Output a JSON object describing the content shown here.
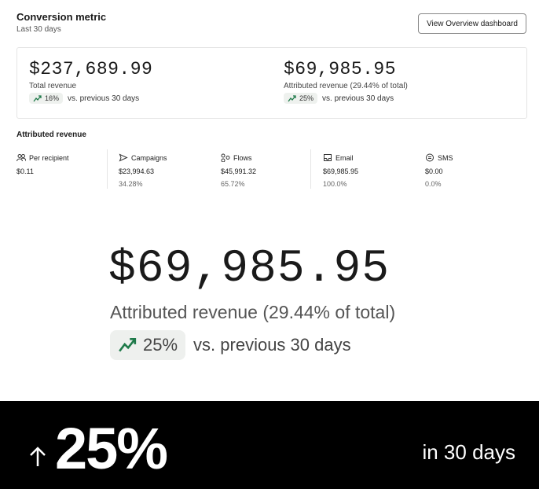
{
  "header": {
    "title": "Conversion metric",
    "subtitle": "Last 30 days",
    "button": "View Overview dashboard"
  },
  "summary": [
    {
      "value": "$237,689.99",
      "label": "Total revenue",
      "change": "16%",
      "comparison": "vs. previous 30 days"
    },
    {
      "value": "$69,985.95",
      "label": "Attributed revenue (29.44% of total)",
      "change": "25%",
      "comparison": "vs. previous 30 days"
    }
  ],
  "attributed": {
    "title": "Attributed revenue",
    "items": [
      {
        "label": "Per recipient",
        "value": "$0.11"
      },
      {
        "label": "Campaigns",
        "value": "$23,994.63",
        "share": "34.28%"
      },
      {
        "label": "Flows",
        "value": "$45,991.32",
        "share": "65.72%"
      },
      {
        "label": "Email",
        "value": "$69,985.95",
        "share": "100.0%"
      },
      {
        "label": "SMS",
        "value": "$0.00",
        "share": "0.0%"
      }
    ]
  },
  "banner": {
    "value": "25%",
    "caption": "in 30 days"
  }
}
